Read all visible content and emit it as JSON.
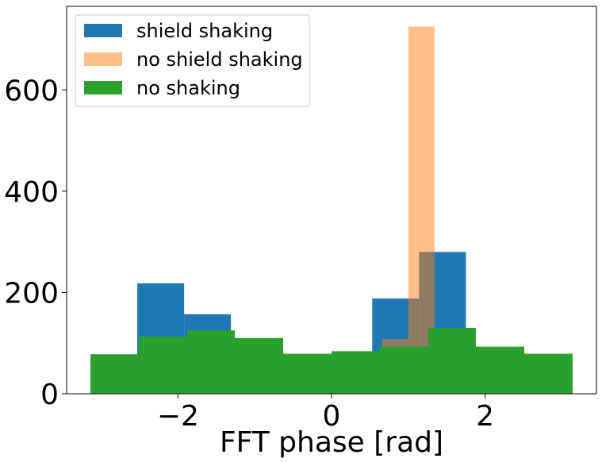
{
  "chart_data": {
    "type": "bar",
    "xlabel": "FFT phase [rad]",
    "ylabel": "",
    "xlim": [
      -3.45,
      3.45
    ],
    "ylim": [
      0,
      765
    ],
    "xticks": [
      -2,
      0,
      2
    ],
    "yticks": [
      0,
      200,
      400,
      600
    ],
    "xtick_labels": [
      "−2",
      "0",
      "2"
    ],
    "ytick_labels": [
      "0",
      "200",
      "400",
      "600"
    ],
    "grid": false,
    "legend_position": "top-left",
    "series": [
      {
        "name": "shield shaking",
        "color": "#1f77b4",
        "opacity": 1.0,
        "bins": [
          {
            "x0": -3.14,
            "x1": -2.53,
            "value": 45
          },
          {
            "x0": -2.53,
            "x1": -1.92,
            "value": 218
          },
          {
            "x0": -1.92,
            "x1": -1.31,
            "value": 157
          },
          {
            "x0": -1.31,
            "x1": -0.7,
            "value": 20
          },
          {
            "x0": -0.7,
            "x1": -0.09,
            "value": 18
          },
          {
            "x0": -0.09,
            "x1": 0.53,
            "value": 20
          },
          {
            "x0": 0.53,
            "x1": 1.14,
            "value": 188
          },
          {
            "x0": 1.14,
            "x1": 1.75,
            "value": 280
          },
          {
            "x0": 1.75,
            "x1": 2.36,
            "value": 40
          },
          {
            "x0": 2.36,
            "x1": 2.97,
            "value": 20
          }
        ]
      },
      {
        "name": "no shield shaking",
        "color": "#ff7f0e",
        "opacity": 0.5,
        "bins": [
          {
            "x0": -3.14,
            "x1": -2.8,
            "value": 0
          },
          {
            "x0": 0.66,
            "x1": 1.0,
            "value": 108
          },
          {
            "x0": 1.0,
            "x1": 1.34,
            "value": 725
          },
          {
            "x0": 1.34,
            "x1": 1.68,
            "value": 0
          }
        ]
      },
      {
        "name": "no shaking",
        "color": "#2ca02c",
        "opacity": 1.0,
        "bins": [
          {
            "x0": -3.14,
            "x1": -2.51,
            "value": 78
          },
          {
            "x0": -2.51,
            "x1": -1.88,
            "value": 113
          },
          {
            "x0": -1.88,
            "x1": -1.26,
            "value": 125
          },
          {
            "x0": -1.26,
            "x1": -0.63,
            "value": 110
          },
          {
            "x0": -0.63,
            "x1": 0.0,
            "value": 79
          },
          {
            "x0": 0.0,
            "x1": 0.63,
            "value": 84
          },
          {
            "x0": 0.63,
            "x1": 1.26,
            "value": 93
          },
          {
            "x0": 1.26,
            "x1": 1.88,
            "value": 130
          },
          {
            "x0": 1.88,
            "x1": 2.51,
            "value": 93
          },
          {
            "x0": 2.51,
            "x1": 3.14,
            "value": 79
          }
        ]
      }
    ]
  }
}
